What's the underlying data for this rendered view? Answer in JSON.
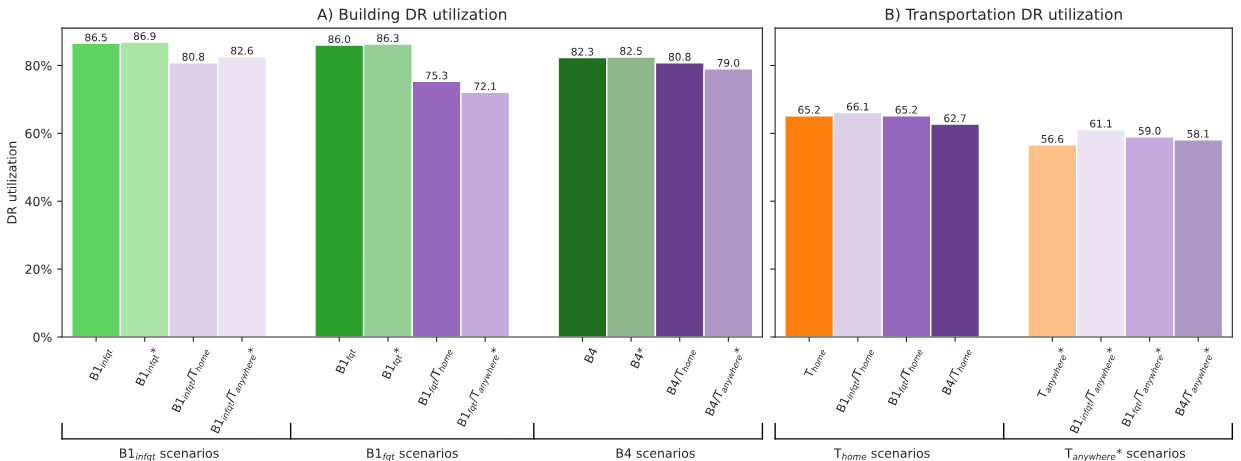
{
  "chart_data": [
    {
      "type": "bar",
      "title": "A) Building DR utilization",
      "ylabel": "DR utilization",
      "categories": [
        "B1$_{infqt}$",
        "B1$_{infqt}$*",
        "B1$_{infqt}$/T$_{home}$",
        "B1$_{infqt}$/T$_{anywhere}$*",
        null,
        "B1$_{fqt}$",
        "B1$_{fqt}$*",
        "B1$_{fqt}$/T$_{home}$",
        "B1$_{fqt}$/T$_{anywhere}$*",
        null,
        "B4",
        "B4*",
        "B4/T$_{home}$",
        "B4/T$_{anywhere}$*"
      ],
      "values": [
        86.5,
        86.9,
        80.8,
        82.6,
        null,
        86.0,
        86.3,
        75.3,
        72.1,
        null,
        82.3,
        82.5,
        80.8,
        79.0
      ],
      "colors": [
        "#5fd35f",
        "#abe5a6",
        "#dccfe8",
        "#ebe2f3",
        null,
        "#2ca02c",
        "#95cf95",
        "#9467bd",
        "#c5abdd",
        null,
        "#1e701e",
        "#8db68d",
        "#673f8e",
        "#ad98c6"
      ],
      "value_labels": [
        "86.5",
        "86.9",
        "80.8",
        "82.6",
        null,
        "86.0",
        "86.3",
        "75.3",
        "72.1",
        null,
        "82.3",
        "82.5",
        "80.8",
        "79.0"
      ],
      "ylim": [
        0,
        91
      ],
      "yticks": [
        {
          "value": 0,
          "label": "0%"
        },
        {
          "value": 20,
          "label": "20%"
        },
        {
          "value": 40,
          "label": "40%"
        },
        {
          "value": 60,
          "label": "60%"
        },
        {
          "value": 80,
          "label": "80%"
        }
      ],
      "annotations": [
        "B1$_{infqt}$ scenarios",
        "B1$_{fqt}$ scenarios",
        "B4 scenarios"
      ]
    },
    {
      "type": "bar",
      "title": "B) Transportation DR utilization",
      "categories": [
        "T$_{home}$",
        "B1$_{infqt}$/T$_{home}$",
        "B1$_{fqt}$/T$_{home}$",
        "B4/T$_{home}$",
        null,
        "T$_{anywhere}$*",
        "B1$_{infqt}$/T$_{anywhere}$*",
        "B1$_{fqt}$/T$_{anywhere}$*",
        "B4/T$_{anywhere}$*"
      ],
      "values": [
        65.2,
        66.1,
        65.2,
        62.7,
        null,
        56.6,
        61.1,
        59.0,
        58.1
      ],
      "colors": [
        "#ff7f0e",
        "#dccfe8",
        "#9467bd",
        "#673f8e",
        null,
        "#ffbf86",
        "#ebe2f3",
        "#c5abdd",
        "#ad98c6"
      ],
      "value_labels": [
        "65.2",
        "66.1",
        "65.2",
        "62.7",
        null,
        "56.6",
        "61.1",
        "59.0",
        "58.1"
      ],
      "ylim": [
        0,
        91
      ],
      "yticks": [
        {
          "value": 0,
          "label": null
        },
        {
          "value": 20,
          "label": null
        },
        {
          "value": 40,
          "label": null
        },
        {
          "value": 60,
          "label": null
        },
        {
          "value": 80,
          "label": null
        }
      ],
      "annotations": [
        "T$_{home}$ scenarios",
        "T$_{anywhere}$* scenarios"
      ]
    }
  ]
}
